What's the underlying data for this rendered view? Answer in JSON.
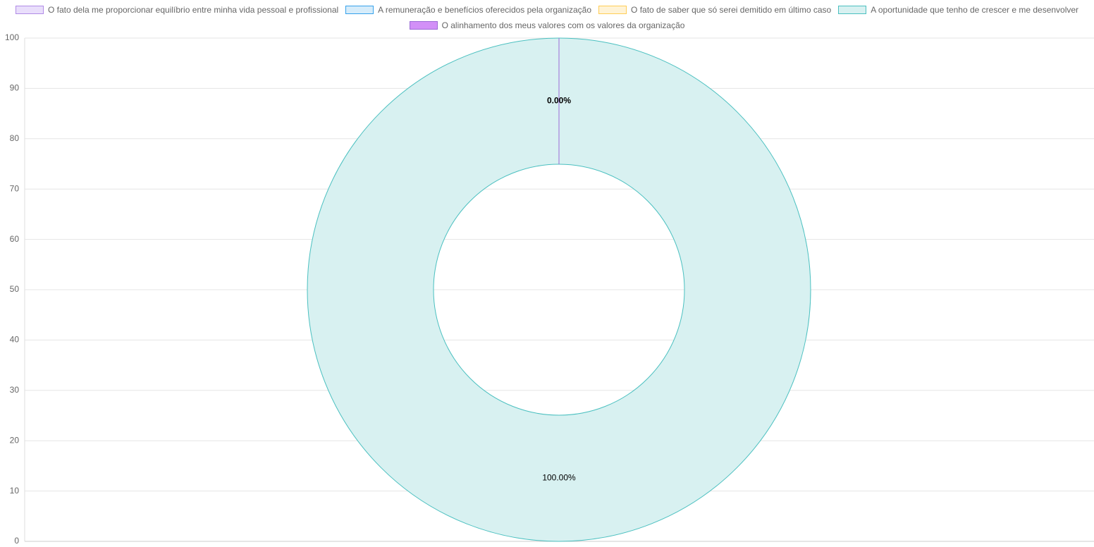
{
  "chart_data": {
    "type": "doughnut",
    "categories": [
      "O fato dela me proporcionar equilíbrio entre minha vida pessoal e profissional",
      "A remuneração e benefícios oferecidos pela organização",
      "O fato de saber que só serei demitido em último caso",
      "A oportunidade que tenho de crescer e me desenvolver",
      "O alinhamento dos meus valores com os valores da organização"
    ],
    "values": [
      0,
      0,
      0,
      100,
      0
    ],
    "value_labels": [
      null,
      null,
      null,
      "100.00%",
      "0.00%"
    ],
    "colors": [
      "#e9defb",
      "#d6ecfa",
      "#fff3d6",
      "#d8f1f1",
      "#d290f7"
    ],
    "border_colors": [
      "#b18be6",
      "#36a2eb",
      "#ffcd56",
      "#4bc0c0",
      "#9b6ad6"
    ],
    "ylim": [
      0,
      100
    ],
    "yticks": [
      0,
      10,
      20,
      30,
      40,
      50,
      60,
      70,
      80,
      90,
      100
    ],
    "grid": true
  }
}
